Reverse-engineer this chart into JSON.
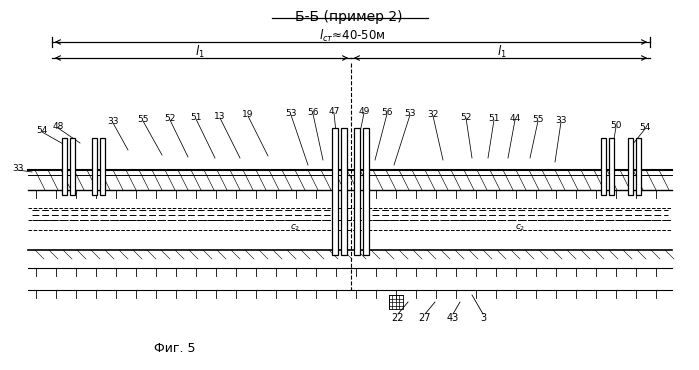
{
  "title": "Б-Б (пример 2)",
  "figure_label": "Фиг. 5",
  "bg_color": "#ffffff",
  "text_color": "#000000",
  "line_color": "#000000",
  "fig_width": 6.99,
  "fig_height": 3.7,
  "dpi": 100
}
